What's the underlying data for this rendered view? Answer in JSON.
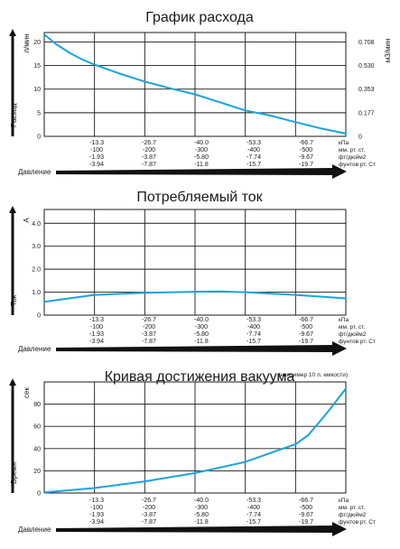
{
  "chart_data": [
    {
      "type": "line",
      "title": "График расхода",
      "ylabel": "Расход",
      "yunit": "л/мин",
      "y2unit": "м3/мин",
      "xlabel": "Давление",
      "ylim": [
        0,
        22
      ],
      "yticks": [
        "0",
        "5",
        "10",
        "15",
        "20"
      ],
      "y2ticks": [
        "0",
        "0.177",
        "0.353",
        "0.530",
        "0.708"
      ],
      "x_units": [
        "кПа",
        "мм. рт. ст.",
        "фт/дюйм2",
        "фунтов рт. Ст"
      ],
      "x_rows": [
        [
          "-13.3",
          "-26.7",
          "-40.0",
          "-53.3",
          "-66.7"
        ],
        [
          "-100",
          "-200",
          "-300",
          "-400",
          "-500"
        ],
        [
          "-1.93",
          "-3.87",
          "-5.80",
          "-7.74",
          "-9.67"
        ],
        [
          "-3.94",
          "-7.87",
          "-11.8",
          "-15.7",
          "-19.7"
        ]
      ],
      "series": [
        {
          "color": "#1aa3dc",
          "x": [
            0,
            -3,
            -6.7,
            -10,
            -13.3,
            -20,
            -26.7,
            -33.3,
            -40,
            -46.7,
            -53.3,
            -60,
            -66.7,
            -73.3,
            -80
          ],
          "y": [
            21.6,
            19.6,
            17.7,
            16.3,
            15.2,
            13.3,
            11.6,
            10.2,
            8.9,
            7.2,
            5.5,
            4.4,
            3.0,
            1.7,
            0.6
          ]
        }
      ],
      "grid": true
    },
    {
      "type": "line",
      "title": "Потребляемый ток",
      "ylabel": "Ток",
      "yunit": "А",
      "xlabel": "Давление",
      "ylim": [
        0,
        4.6
      ],
      "yticks": [
        "0",
        "1.0",
        "2.0",
        "3.0",
        "4.0"
      ],
      "x_units": [
        "кПа",
        "мм. рт. ст.",
        "фт/дюйм2",
        "фунтов рт. Ст"
      ],
      "x_rows": [
        [
          "-13.3",
          "-26.7",
          "-40.0",
          "-53.3",
          "-66.7"
        ],
        [
          "-100",
          "-200",
          "-300",
          "-400",
          "-500"
        ],
        [
          "-1.93",
          "-3.87",
          "-5.80",
          "-7.74",
          "-9.67"
        ],
        [
          "-3.94",
          "-7.87",
          "-11.8",
          "-15.7",
          "-19.7"
        ]
      ],
      "series": [
        {
          "color": "#1aa3dc",
          "x": [
            0,
            -13.3,
            -26.7,
            -40,
            -46.7,
            -53.3,
            -66.7,
            -80
          ],
          "y": [
            0.58,
            0.88,
            0.97,
            1.02,
            1.03,
            1.0,
            0.88,
            0.73
          ]
        }
      ],
      "grid": true
    },
    {
      "type": "line",
      "title": "Кривая достижения вакуума",
      "note": "(например 10 л. емкости)",
      "ylabel": "Время",
      "yunit": "сек",
      "xlabel": "Давление",
      "ylim": [
        0,
        100
      ],
      "yticks": [
        "0",
        "20",
        "40",
        "60",
        "80"
      ],
      "x_units": [
        "кПа",
        "мм. рт. ст.",
        "фт/дюйм2",
        "фунтов рт. Ст"
      ],
      "x_rows": [
        [
          "-13.3",
          "-26.7",
          "-40.0",
          "-53.3",
          "-66.7"
        ],
        [
          "-100",
          "-200",
          "-300",
          "-400",
          "-500"
        ],
        [
          "-1.93",
          "-3.87",
          "-5.80",
          "-7.74",
          "-9.67"
        ],
        [
          "-3.94",
          "-7.87",
          "-11.8",
          "-15.7",
          "-19.7"
        ]
      ],
      "series": [
        {
          "color": "#1aa3dc",
          "x": [
            0,
            -13.3,
            -26.7,
            -40,
            -53.3,
            -60,
            -66.7,
            -70,
            -75,
            -80
          ],
          "y": [
            0.5,
            4.5,
            10.5,
            18,
            28,
            36,
            44,
            52,
            72,
            94
          ]
        }
      ],
      "grid": true
    }
  ]
}
